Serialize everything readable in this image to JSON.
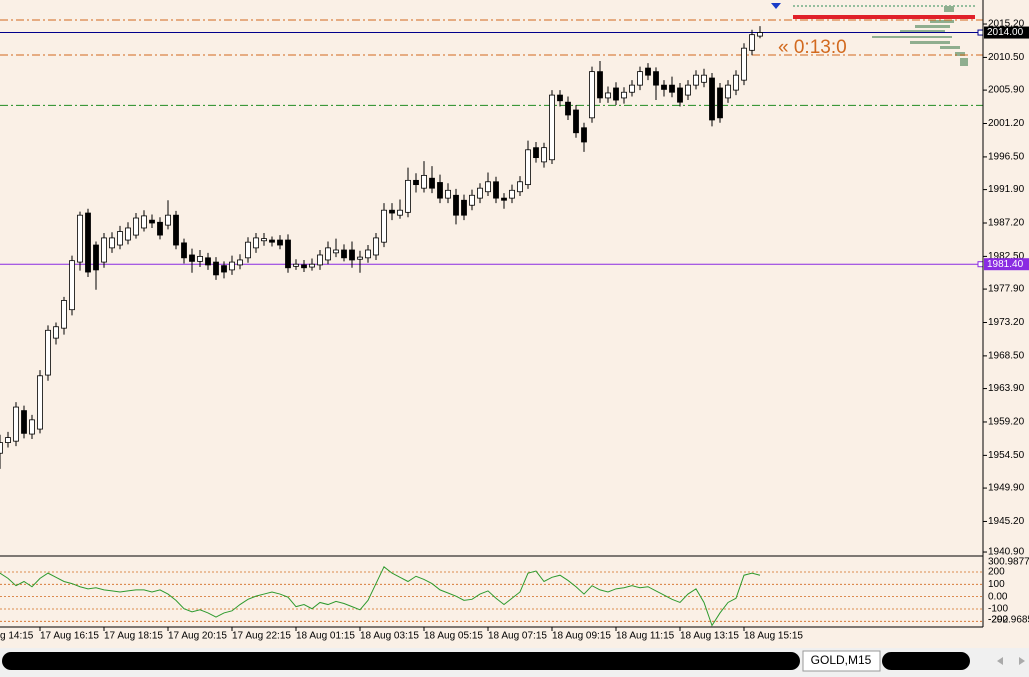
{
  "chart_data": [
    {
      "type": "candlestick",
      "categories": [
        null,
        null,
        null,
        null,
        null,
        "17 Aug 16:15",
        null,
        null,
        null,
        null,
        null,
        null,
        null,
        "17 Aug 18:15",
        null,
        null,
        null,
        null,
        null,
        null,
        null,
        "17 Aug 20:15",
        null,
        null,
        null,
        null,
        null,
        null,
        null,
        "17 Aug 22:15",
        null,
        null,
        null,
        null,
        null,
        null,
        null,
        "18 Aug 01:15",
        null,
        null,
        null,
        null,
        null,
        null,
        null,
        "18 Aug 03:15",
        null,
        null,
        null,
        null,
        null,
        null,
        null,
        "18 Aug 05:15",
        null,
        null,
        null,
        null,
        null,
        null,
        null,
        "18 Aug 07:15",
        null,
        null,
        null,
        null,
        null,
        null,
        null,
        "18 Aug 09:15",
        null,
        null,
        null,
        null,
        null,
        null,
        null,
        "18 Aug 11:15",
        null,
        null,
        null,
        null,
        null,
        null,
        null,
        "18 Aug 13:15",
        null,
        null,
        null,
        null,
        null,
        null,
        null,
        "18 Aug 15:15",
        null,
        null
      ],
      "cut_label": "g 14:15",
      "open": [
        1954.8,
        1956.3,
        1956.5,
        1960.8,
        1957.5,
        1958.2,
        1965.8,
        1971.0,
        1972.4,
        1975.0,
        1981.7,
        1988.6,
        1984.1,
        1981.7,
        1983.7,
        1984.1,
        1984.8,
        1985.5,
        1986.5,
        1987.6,
        1987.3,
        1986.9,
        1988.3,
        1984.4,
        1982.7,
        1981.8,
        1982.3,
        1981.7,
        1981.2,
        1980.6,
        1981.3,
        1982.3,
        1983.7,
        1984.7,
        1984.8,
        1984.8,
        1984.8,
        1981.1,
        1981.3,
        1981.0,
        1981.3,
        1982.0,
        1983.0,
        1983.4,
        1983.4,
        1982.1,
        1982.3,
        1982.7,
        1984.5,
        1989.0,
        1988.3,
        1988.7,
        1993.2,
        1992.1,
        1993.5,
        1992.9,
        1990.7,
        1991.1,
        1990.4,
        1989.7,
        1990.7,
        1991.6,
        1993.0,
        1990.7,
        1990.7,
        1991.6,
        1992.6,
        1997.8,
        1995.8,
        1996.1,
        2005.2,
        2004.2,
        2003.1,
        2000.6,
        2002.0,
        2008.5,
        2004.8,
        2006.2,
        2004.8,
        2005.6,
        2006.6,
        2009.0,
        2008.5,
        2006.6,
        2006.6,
        2006.2,
        2005.2,
        2006.6,
        2007.0,
        2007.6,
        2006.2,
        2004.8,
        2005.9,
        2007.3,
        2011.5,
        2013.5
      ],
      "high": [
        1957.4,
        1957.8,
        1962.0,
        1961.5,
        1960.2,
        1966.5,
        1972.8,
        1973.2,
        1976.8,
        1982.6,
        1988.8,
        1989.2,
        1984.6,
        1985.8,
        1985.9,
        1986.8,
        1987.3,
        1988.6,
        1989.0,
        1988.4,
        1988.0,
        1990.4,
        1988.9,
        1985.0,
        1983.6,
        1983.4,
        1983.0,
        1982.4,
        1981.8,
        1982.6,
        1982.8,
        1985.2,
        1985.8,
        1985.8,
        1985.3,
        1985.5,
        1985.6,
        1982.1,
        1982.0,
        1982.2,
        1983.4,
        1984.6,
        1985.0,
        1984.2,
        1984.6,
        1983.3,
        1984.1,
        1985.8,
        1990.0,
        1990.0,
        1990.5,
        1995.0,
        1994.2,
        1995.9,
        1995.2,
        1994.0,
        1992.8,
        1992.0,
        1991.2,
        1991.9,
        1992.8,
        1994.3,
        1993.7,
        1991.4,
        1992.6,
        1993.8,
        1998.8,
        1998.6,
        1998.5,
        2005.9,
        2005.9,
        2005.0,
        2003.8,
        2001.3,
        2009.2,
        2010.0,
        2006.4,
        2007.0,
        2006.3,
        2007.3,
        2009.2,
        2009.7,
        2009.1,
        2007.3,
        2007.8,
        2006.9,
        2007.3,
        2008.7,
        2008.9,
        2008.3,
        2006.9,
        2007.3,
        2008.7,
        2012.5,
        2014.4,
        2014.9
      ],
      "low": [
        1952.6,
        1955.6,
        1955.8,
        1956.9,
        1956.8,
        1957.6,
        1965.0,
        1970.1,
        1971.5,
        1974.2,
        1980.5,
        1979.6,
        1977.8,
        1980.9,
        1983.0,
        1983.5,
        1984.2,
        1985.0,
        1986.0,
        1986.5,
        1984.9,
        1986.3,
        1983.5,
        1981.5,
        1980.2,
        1981.0,
        1980.6,
        1979.2,
        1979.4,
        1979.9,
        1980.7,
        1981.6,
        1983.0,
        1984.0,
        1983.9,
        1983.5,
        1980.2,
        1980.6,
        1980.3,
        1980.5,
        1980.6,
        1981.4,
        1982.4,
        1981.8,
        1980.9,
        1980.2,
        1981.6,
        1982.0,
        1983.8,
        1987.6,
        1987.8,
        1988.0,
        1991.5,
        1991.5,
        1991.4,
        1990.0,
        1990.0,
        1987.0,
        1987.6,
        1989.0,
        1990.0,
        1991.0,
        1990.0,
        1989.2,
        1990.0,
        1991.0,
        1992.0,
        1995.7,
        1995.0,
        1995.5,
        2003.6,
        2001.7,
        1999.2,
        1997.2,
        2001.3,
        2004.1,
        2004.1,
        2003.8,
        2004.0,
        2005.0,
        2005.9,
        2007.3,
        2004.5,
        2005.0,
        2004.9,
        2003.6,
        2004.5,
        2006.0,
        2006.3,
        2000.8,
        2001.3,
        2004.1,
        2005.2,
        2006.6,
        2010.8,
        2013.2
      ],
      "close": [
        1956.3,
        1957.0,
        1961.3,
        1957.6,
        1959.5,
        1965.7,
        1972.1,
        1972.6,
        1976.3,
        1981.9,
        1988.3,
        1980.3,
        1980.6,
        1985.1,
        1985.1,
        1986.0,
        1986.5,
        1987.9,
        1988.2,
        1987.2,
        1985.5,
        1988.3,
        1984.1,
        1982.3,
        1981.8,
        1982.5,
        1981.3,
        1979.9,
        1980.3,
        1981.7,
        1982.0,
        1984.5,
        1985.1,
        1985.0,
        1984.5,
        1984.1,
        1980.9,
        1981.4,
        1980.9,
        1981.4,
        1982.7,
        1983.7,
        1983.4,
        1982.3,
        1982.0,
        1982.4,
        1983.4,
        1985.1,
        1989.0,
        1988.6,
        1989.0,
        1993.2,
        1992.6,
        1993.9,
        1992.1,
        1990.7,
        1991.8,
        1988.3,
        1988.3,
        1991.1,
        1992.1,
        1993.0,
        1990.7,
        1990.4,
        1991.8,
        1993.0,
        1997.5,
        1996.4,
        1997.8,
        2005.2,
        2004.4,
        2002.4,
        1999.9,
        1998.6,
        2008.5,
        2004.8,
        2005.5,
        2004.5,
        2005.6,
        2006.6,
        2008.5,
        2008.0,
        2006.6,
        2006.0,
        2005.6,
        2004.2,
        2006.6,
        2008.0,
        2008.0,
        2001.7,
        2002.0,
        2006.6,
        2008.0,
        2011.8,
        2013.7,
        2014.0
      ],
      "up_color": "#ffffff",
      "down_color": "#000000",
      "ylim": [
        1940.34,
        2018.58
      ],
      "yticks": [
        {
          "value": 2015.2,
          "label": "2015.20"
        },
        {
          "value": 2010.5,
          "label": "2010.50"
        },
        {
          "value": 2005.9,
          "label": "2005.90"
        },
        {
          "value": 2001.2,
          "label": "2001.20"
        },
        {
          "value": 1996.5,
          "label": "1996.50"
        },
        {
          "value": 1991.9,
          "label": "1991.90"
        },
        {
          "value": 1987.2,
          "label": "1987.20"
        },
        {
          "value": 1982.5,
          "label": "1982.50"
        },
        {
          "value": 1977.9,
          "label": "1977.90"
        },
        {
          "value": 1973.2,
          "label": "1973.20"
        },
        {
          "value": 1968.5,
          "label": "1968.50"
        },
        {
          "value": 1963.9,
          "label": "1963.90"
        },
        {
          "value": 1959.2,
          "label": "1959.20"
        },
        {
          "value": 1954.5,
          "label": "1954.50"
        },
        {
          "value": 1949.9,
          "label": "1949.90"
        },
        {
          "value": 1945.2,
          "label": "1945.20"
        },
        {
          "value": 1940.9,
          "label": "1940.90"
        }
      ],
      "grid": false,
      "levels": [
        {
          "value": 2015.76,
          "color": "#d2691e",
          "style": "dash-dot"
        },
        {
          "value": 2010.84,
          "color": "#d2691e",
          "style": "dash-dot"
        },
        {
          "value": 2003.76,
          "color": "#228b22",
          "style": "dash-dot"
        },
        {
          "value": 2014,
          "label": "2014.00",
          "color": "#00008b",
          "label_fill": "#000000",
          "style": "solid"
        },
        {
          "value": 1981.4,
          "label": "1981.40",
          "color": "#8a2be2",
          "label_fill": "#8a2be2",
          "style": "solid"
        }
      ],
      "countdown": "« 0:13:0"
    },
    {
      "type": "line",
      "series": [
        {
          "color": "#2e9a2e",
          "values": [
            190.6,
            148.2,
            88.8,
            122.7,
            80.3,
            148.2,
            190.6,
            156.7,
            122.7,
            105.8,
            80.3,
            63.3,
            71.8,
            54.8,
            46.3,
            37.8,
            46.3,
            54.8,
            54.8,
            37.8,
            54.8,
            20.9,
            -30.1,
            -98.0,
            -123.5,
            -106.5,
            -131.9,
            -165.9,
            -131.9,
            -115.0,
            -64.0,
            -21.6,
            3.9,
            20.9,
            37.8,
            20.9,
            -4.6,
            -81.0,
            -64.0,
            -98.0,
            -47.1,
            -64.0,
            -38.6,
            -55.5,
            -81.0,
            -106.5,
            -30.1,
            105.8,
            241.6,
            190.6,
            156.7,
            122.7,
            165.2,
            139.7,
            105.8,
            54.8,
            29.4,
            3.9,
            -30.1,
            -21.6,
            20.9,
            46.3,
            -13.1,
            -64.0,
            -13.1,
            37.8,
            190.6,
            207.6,
            122.7,
            156.7,
            173.7,
            131.2,
            80.3,
            20.9,
            88.8,
            54.8,
            37.8,
            63.3,
            71.8,
            88.8,
            71.8,
            80.3,
            46.3,
            12.4,
            -21.6,
            -47.1,
            20.9,
            63.3,
            -47.1,
            -233.8,
            -131.9,
            -47.1,
            -13.1,
            173.7,
            190.6,
            173.7
          ]
        }
      ],
      "ylim": [
        -292.9685,
        300.9877
      ],
      "yticks": [
        300.9877,
        200,
        100,
        {
          "value": 0,
          "label": "0.00"
        },
        -100,
        -292.9685,
        -200
      ],
      "grid": true
    }
  ],
  "symbol_tab": "GOLD,M15"
}
